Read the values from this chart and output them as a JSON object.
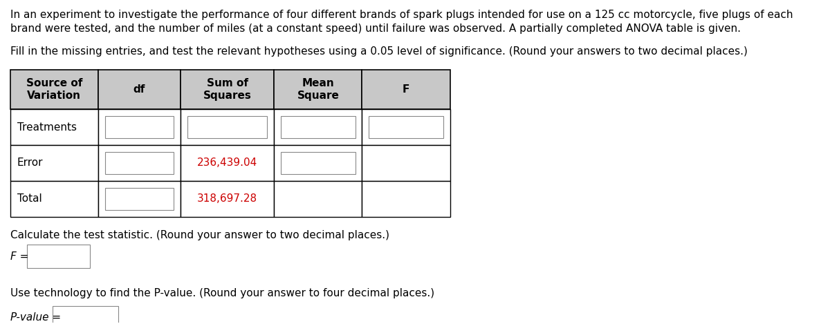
{
  "title_line1": "In an experiment to investigate the performance of four different brands of spark plugs intended for use on a 125 cc motorcycle, five plugs of each",
  "title_line2": "brand were tested, and the number of miles (at a constant speed) until failure was observed. A partially completed ANOVA table is given.",
  "subtitle_text": "Fill in the missing entries, and test the relevant hypotheses using a 0.05 level of significance. (Round your answers to two decimal places.)",
  "col_headers": [
    "Source of\nVariation",
    "df",
    "Sum of\nSquares",
    "Mean\nSquare",
    "F"
  ],
  "rows": [
    "Treatments",
    "Error",
    "Total"
  ],
  "given_values": {
    "error_ss": "236,439.04",
    "total_ss": "318,697.28"
  },
  "footer_texts": [
    "Calculate the test statistic. (Round your answer to two decimal places.)",
    "F =",
    "Use technology to find the P-value. (Round your answer to four decimal places.)",
    "P-value ="
  ],
  "header_bg": "#c8c8c8",
  "cell_bg": "#ffffff",
  "border_color": "#000000",
  "text_color_black": "#000000",
  "text_color_red": "#cc0000",
  "font_size_body": 11,
  "font_size_header": 11
}
